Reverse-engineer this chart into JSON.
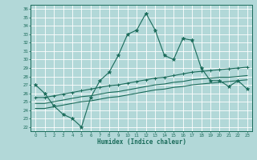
{
  "xlabel": "Humidex (Indice chaleur)",
  "background_color": "#b2d8d8",
  "grid_color": "#8fbfbf",
  "line_color": "#1a6b5a",
  "xlim": [
    -0.5,
    23.5
  ],
  "ylim": [
    21.5,
    36.5
  ],
  "yticks": [
    22,
    23,
    24,
    25,
    26,
    27,
    28,
    29,
    30,
    31,
    32,
    33,
    34,
    35,
    36
  ],
  "xticks": [
    0,
    1,
    2,
    3,
    4,
    5,
    6,
    7,
    8,
    9,
    10,
    11,
    12,
    13,
    14,
    15,
    16,
    17,
    18,
    19,
    20,
    21,
    22,
    23
  ],
  "line1_x": [
    0,
    1,
    2,
    3,
    4,
    5,
    6,
    7,
    8,
    9,
    10,
    11,
    12,
    13,
    14,
    15,
    16,
    17,
    18,
    19,
    20,
    21,
    22,
    23
  ],
  "line1_y": [
    27.0,
    26.0,
    24.5,
    23.5,
    23.0,
    22.0,
    25.5,
    27.5,
    28.5,
    30.5,
    33.0,
    33.5,
    35.5,
    33.5,
    30.5,
    30.0,
    32.5,
    32.3,
    29.0,
    27.5,
    27.5,
    26.8,
    27.5,
    26.5
  ],
  "line2_x": [
    0,
    1,
    2,
    3,
    4,
    5,
    6,
    7,
    8,
    9,
    10,
    11,
    12,
    13,
    14,
    15,
    16,
    17,
    18,
    19,
    20,
    21,
    22,
    23
  ],
  "line2_y": [
    25.5,
    25.5,
    25.7,
    25.9,
    26.1,
    26.3,
    26.5,
    26.7,
    26.9,
    27.0,
    27.2,
    27.4,
    27.6,
    27.8,
    27.9,
    28.1,
    28.3,
    28.5,
    28.6,
    28.7,
    28.8,
    28.9,
    29.0,
    29.1
  ],
  "line3_x": [
    0,
    1,
    2,
    3,
    4,
    5,
    6,
    7,
    8,
    9,
    10,
    11,
    12,
    13,
    14,
    15,
    16,
    17,
    18,
    19,
    20,
    21,
    22,
    23
  ],
  "line3_y": [
    24.8,
    24.8,
    25.0,
    25.2,
    25.4,
    25.6,
    25.7,
    25.9,
    26.1,
    26.2,
    26.4,
    26.6,
    26.8,
    27.0,
    27.1,
    27.3,
    27.4,
    27.6,
    27.7,
    27.8,
    27.9,
    27.9,
    28.0,
    28.1
  ],
  "line4_x": [
    0,
    1,
    2,
    3,
    4,
    5,
    6,
    7,
    8,
    9,
    10,
    11,
    12,
    13,
    14,
    15,
    16,
    17,
    18,
    19,
    20,
    21,
    22,
    23
  ],
  "line4_y": [
    24.2,
    24.2,
    24.4,
    24.6,
    24.8,
    25.0,
    25.1,
    25.3,
    25.5,
    25.6,
    25.8,
    26.0,
    26.2,
    26.4,
    26.5,
    26.7,
    26.8,
    27.0,
    27.1,
    27.2,
    27.3,
    27.4,
    27.5,
    27.6
  ]
}
